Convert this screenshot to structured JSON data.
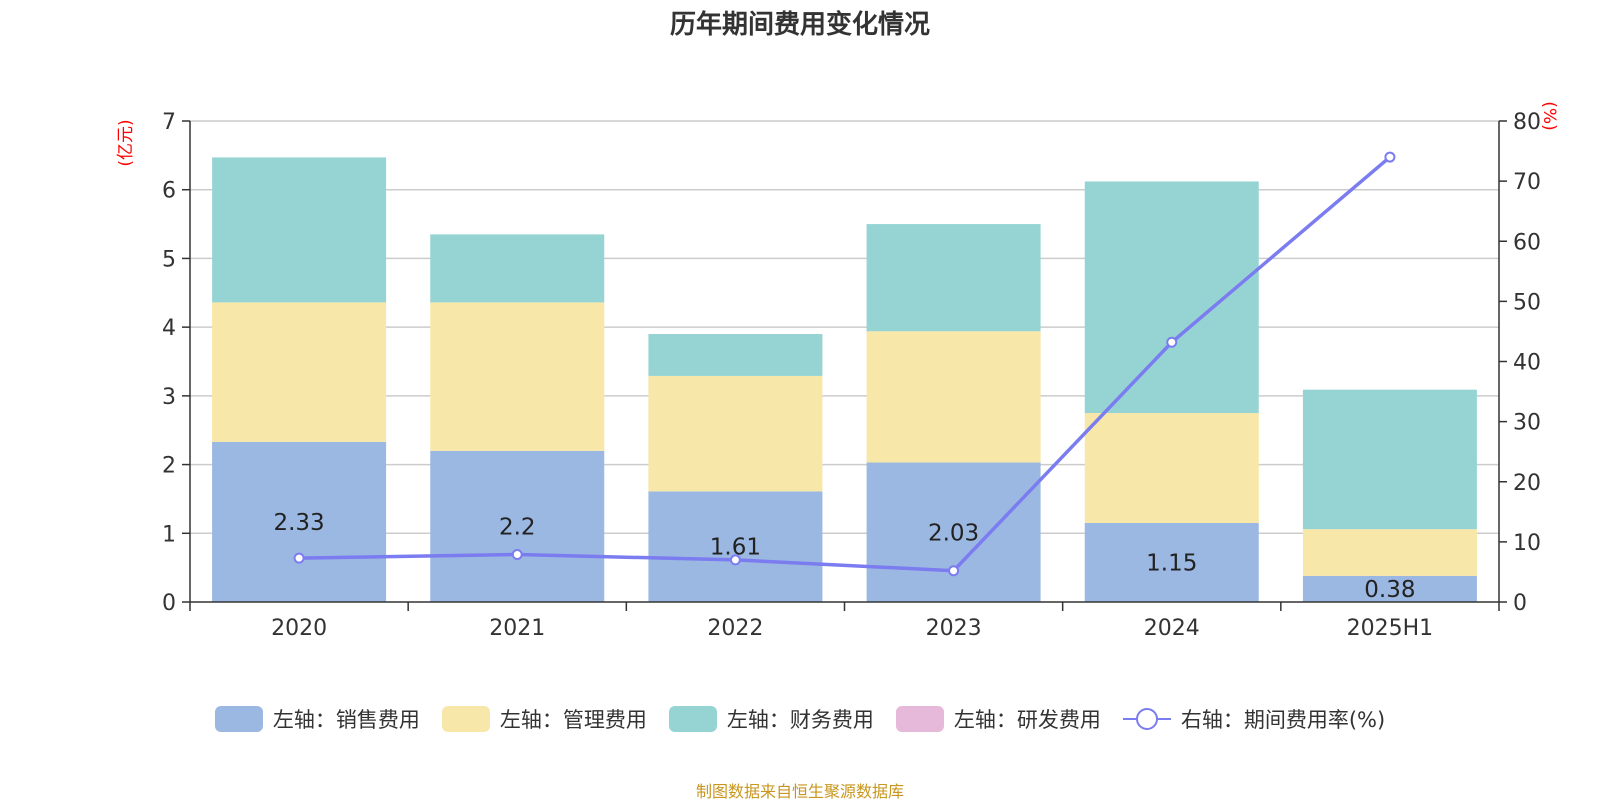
{
  "chart_data": {
    "type": "bar",
    "title": "历年期间费用变化情况",
    "categories": [
      "2020",
      "2021",
      "2022",
      "2023",
      "2024",
      "2025H1"
    ],
    "y_left_label": "(亿元)",
    "y_right_label": "(%)",
    "y_left_lim": [
      0,
      7
    ],
    "y_left_ticks": [
      0,
      1,
      2,
      3,
      4,
      5,
      6,
      7
    ],
    "y_right_lim": [
      0,
      80
    ],
    "y_right_ticks": [
      0,
      10,
      20,
      30,
      40,
      50,
      60,
      70,
      80
    ],
    "stacked": true,
    "grid": true,
    "legend_position": "bottom",
    "series": [
      {
        "name": "左轴：销售费用",
        "axis": "left",
        "type": "bar",
        "color": "#9bb8e3",
        "values": [
          2.33,
          2.2,
          1.61,
          2.03,
          1.15,
          0.38
        ],
        "show_labels": true
      },
      {
        "name": "左轴：管理费用",
        "axis": "left",
        "type": "bar",
        "color": "#f7e7a8",
        "values": [
          2.03,
          2.16,
          1.68,
          1.91,
          1.6,
          0.68
        ]
      },
      {
        "name": "左轴：财务费用",
        "axis": "left",
        "type": "bar",
        "color": "#96d4d4",
        "values": [
          2.11,
          0.99,
          0.61,
          1.56,
          3.37,
          2.03
        ]
      },
      {
        "name": "左轴：研发费用",
        "axis": "left",
        "type": "bar",
        "color": "#e6b8d9",
        "values": [
          0,
          0,
          0,
          0,
          0,
          0
        ]
      },
      {
        "name": "右轴：期间费用率(%)",
        "axis": "right",
        "type": "line",
        "color": "#7b7cf0",
        "values": [
          7.3,
          7.9,
          7.0,
          5.2,
          43.2,
          74.0
        ]
      }
    ]
  },
  "source_note": "制图数据来自恒生聚源数据库"
}
